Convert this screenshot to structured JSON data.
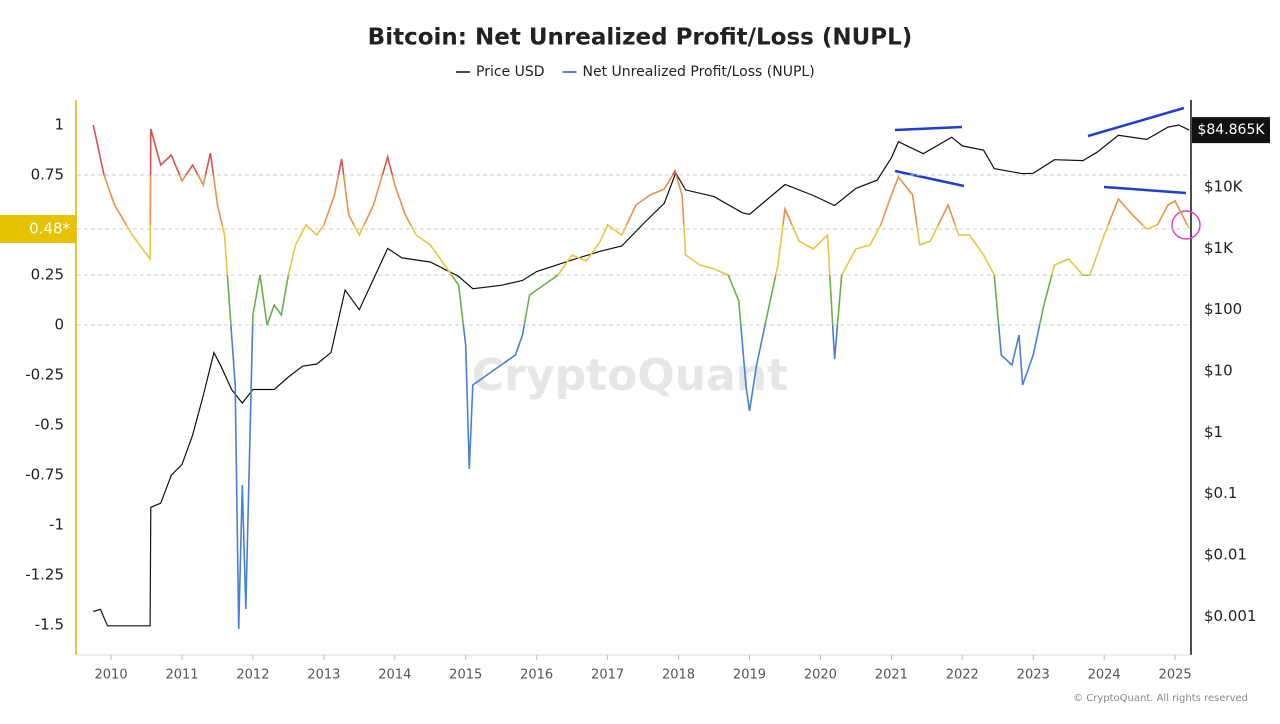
{
  "chart_data": {
    "type": "line",
    "title": "Bitcoin: Net Unrealized Profit/Loss (NUPL)",
    "watermark": "CryptoQuant",
    "copyright": "© CryptoQuant. All rights reserved",
    "xlim": [
      2009.52,
      2025.21
    ],
    "xticks": [
      2010,
      2011,
      2012,
      2013,
      2014,
      2015,
      2016,
      2017,
      2018,
      2019,
      2020,
      2021,
      2022,
      2023,
      2024,
      2025
    ],
    "ylim": [
      -1.65,
      1.125
    ],
    "yticks": [
      1,
      0.75,
      0.25,
      0,
      -0.25,
      -0.5,
      -0.75,
      -1,
      -1.25,
      -1.5
    ],
    "gridlines": [
      0.75,
      0.25,
      0
    ],
    "y2lim": [
      0.000234,
      263000
    ],
    "y2scale": "log",
    "y2ticks": [
      {
        "value": 10000,
        "label": "$10K"
      },
      {
        "value": 1000,
        "label": "$1K"
      },
      {
        "value": 100,
        "label": "$100"
      },
      {
        "value": 10,
        "label": "$10"
      },
      {
        "value": 1,
        "label": "$1"
      },
      {
        "value": 0.1,
        "label": "$0.1"
      },
      {
        "value": 0.01,
        "label": "$0.01"
      },
      {
        "value": 0.001,
        "label": "$0.001"
      }
    ],
    "current_nupl": {
      "value": 0.48,
      "label": "0.48*"
    },
    "current_price": {
      "value": 84865,
      "label": "$84.865K"
    },
    "color_zones": {
      "thresholds": [
        0.75,
        0.5,
        0.25,
        0
      ],
      "colors": [
        "#d9534f",
        "#e8914a",
        "#e6c744",
        "#6ab04c",
        "#4a7fd6"
      ]
    },
    "series": [
      {
        "name": "Price USD",
        "color": "#111111",
        "axis": "y2",
        "x": [
          2009.75,
          2009.85,
          2009.95,
          2010.55,
          2010.56,
          2010.7,
          2010.85,
          2011.0,
          2011.15,
          2011.3,
          2011.45,
          2011.55,
          2011.7,
          2011.85,
          2012.0,
          2012.3,
          2012.5,
          2012.7,
          2012.9,
          2013.1,
          2013.3,
          2013.5,
          2013.9,
          2014.1,
          2014.5,
          2014.9,
          2015.1,
          2015.5,
          2015.8,
          2016.0,
          2016.5,
          2016.9,
          2017.2,
          2017.5,
          2017.8,
          2017.96,
          2018.1,
          2018.5,
          2018.9,
          2019.0,
          2019.5,
          2019.9,
          2020.2,
          2020.5,
          2020.8,
          2021.0,
          2021.1,
          2021.45,
          2021.85,
          2022.0,
          2022.3,
          2022.45,
          2022.85,
          2023.0,
          2023.3,
          2023.7,
          2023.9,
          2024.2,
          2024.6,
          2024.9,
          2025.05,
          2025.2
        ],
        "values": [
          0.0012,
          0.0013,
          0.0007,
          0.0007,
          0.06,
          0.07,
          0.2,
          0.3,
          0.9,
          4,
          20,
          12,
          5,
          3,
          5,
          5,
          8,
          12,
          13,
          20,
          210,
          100,
          1000,
          700,
          600,
          350,
          220,
          250,
          300,
          420,
          650,
          900,
          1100,
          2500,
          5500,
          17000,
          9000,
          7000,
          3800,
          3600,
          11000,
          7300,
          5000,
          9500,
          13000,
          30000,
          55000,
          35000,
          65000,
          47000,
          40000,
          20000,
          16500,
          16800,
          28000,
          27000,
          37000,
          70000,
          60000,
          95000,
          103000,
          84865
        ]
      },
      {
        "name": "Net Unrealized Profit/Loss (NUPL)",
        "color": "#2f4fd8",
        "x": [
          2009.75,
          2009.9,
          2010.05,
          2010.3,
          2010.55,
          2010.56,
          2010.7,
          2010.85,
          2011.0,
          2011.15,
          2011.3,
          2011.4,
          2011.5,
          2011.6,
          2011.65,
          2011.7,
          2011.75,
          2011.8,
          2011.85,
          2011.9,
          2012.0,
          2012.1,
          2012.2,
          2012.3,
          2012.4,
          2012.5,
          2012.6,
          2012.75,
          2012.9,
          2013.0,
          2013.15,
          2013.25,
          2013.35,
          2013.5,
          2013.7,
          2013.9,
          2014.0,
          2014.15,
          2014.3,
          2014.5,
          2014.7,
          2014.9,
          2015.0,
          2015.05,
          2015.1,
          2015.3,
          2015.5,
          2015.7,
          2015.8,
          2015.9,
          2016.1,
          2016.3,
          2016.5,
          2016.7,
          2016.9,
          2017.0,
          2017.2,
          2017.4,
          2017.6,
          2017.8,
          2017.95,
          2018.05,
          2018.1,
          2018.3,
          2018.5,
          2018.7,
          2018.85,
          2018.95,
          2019.0,
          2019.1,
          2019.25,
          2019.4,
          2019.5,
          2019.7,
          2019.9,
          2020.1,
          2020.2,
          2020.3,
          2020.5,
          2020.7,
          2020.85,
          2021.0,
          2021.1,
          2021.3,
          2021.4,
          2021.55,
          2021.8,
          2021.95,
          2022.1,
          2022.3,
          2022.45,
          2022.55,
          2022.7,
          2022.8,
          2022.85,
          2023.0,
          2023.15,
          2023.3,
          2023.5,
          2023.7,
          2023.8,
          2024.0,
          2024.2,
          2024.4,
          2024.6,
          2024.75,
          2024.9,
          2025.0,
          2025.1,
          2025.2
        ],
        "values": [
          1.0,
          0.75,
          0.6,
          0.45,
          0.33,
          0.98,
          0.8,
          0.85,
          0.72,
          0.8,
          0.7,
          0.86,
          0.6,
          0.45,
          0.2,
          -0.05,
          -0.3,
          -1.52,
          -0.8,
          -1.42,
          0.05,
          0.25,
          0.0,
          0.1,
          0.05,
          0.25,
          0.4,
          0.5,
          0.45,
          0.5,
          0.65,
          0.83,
          0.55,
          0.45,
          0.6,
          0.84,
          0.7,
          0.55,
          0.45,
          0.4,
          0.3,
          0.2,
          -0.1,
          -0.72,
          -0.3,
          -0.25,
          -0.2,
          -0.15,
          -0.05,
          0.15,
          0.2,
          0.25,
          0.35,
          0.32,
          0.42,
          0.5,
          0.45,
          0.6,
          0.65,
          0.68,
          0.77,
          0.65,
          0.35,
          0.3,
          0.28,
          0.25,
          0.12,
          -0.3,
          -0.43,
          -0.2,
          0.05,
          0.3,
          0.58,
          0.42,
          0.38,
          0.45,
          -0.17,
          0.25,
          0.38,
          0.4,
          0.5,
          0.65,
          0.74,
          0.65,
          0.4,
          0.42,
          0.6,
          0.45,
          0.45,
          0.35,
          0.25,
          -0.15,
          -0.2,
          -0.05,
          -0.3,
          -0.15,
          0.1,
          0.3,
          0.33,
          0.25,
          0.25,
          0.45,
          0.63,
          0.55,
          0.48,
          0.5,
          0.6,
          0.62,
          0.55,
          0.48
        ]
      }
    ]
  }
}
